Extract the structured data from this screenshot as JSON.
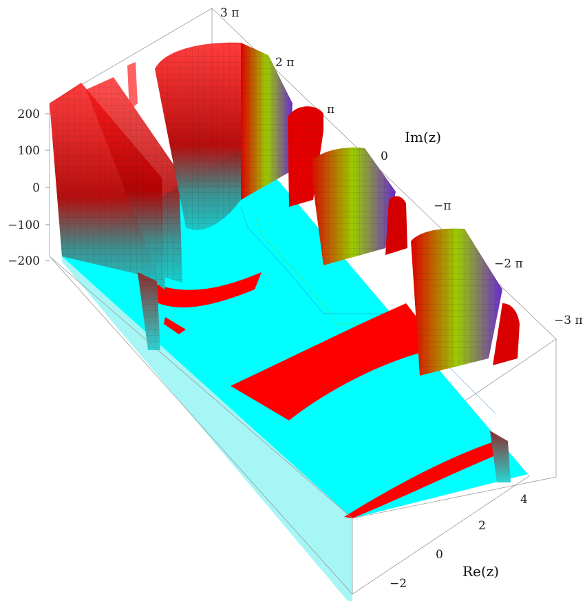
{
  "chart_data": {
    "type": "surface3d",
    "title": "",
    "axes": {
      "re": {
        "label": "Re(z)",
        "ticks": [
          "−2",
          "0",
          "2",
          "4"
        ],
        "tick_values": [
          -2,
          0,
          2,
          4
        ],
        "range": [
          -3,
          4.5
        ]
      },
      "im": {
        "label": "Im(z)",
        "ticks": [
          "3 π",
          "2 π",
          "π",
          "0",
          "−π",
          "−2 π",
          "−3 π"
        ],
        "tick_values": [
          9.42,
          6.28,
          3.14,
          0,
          -3.14,
          -6.28,
          -9.42
        ],
        "range": [
          -9.42,
          9.42
        ]
      },
      "z": {
        "label": "",
        "ticks": [
          "200",
          "100",
          "0",
          "−100",
          "−200"
        ],
        "tick_values": [
          200,
          100,
          0,
          -100,
          -200
        ],
        "range": [
          -200,
          200
        ]
      }
    },
    "color_scheme": {
      "base_floor": "#00ffff",
      "high_positive": "#ff0000",
      "mesh": "#333333",
      "accent_green": "#99cc00",
      "accent_purple": "#7a2bd6"
    },
    "features": {
      "clipped_sheets": true,
      "mesh_lines": true,
      "contour_lines_on_floor": true,
      "box": true
    }
  }
}
